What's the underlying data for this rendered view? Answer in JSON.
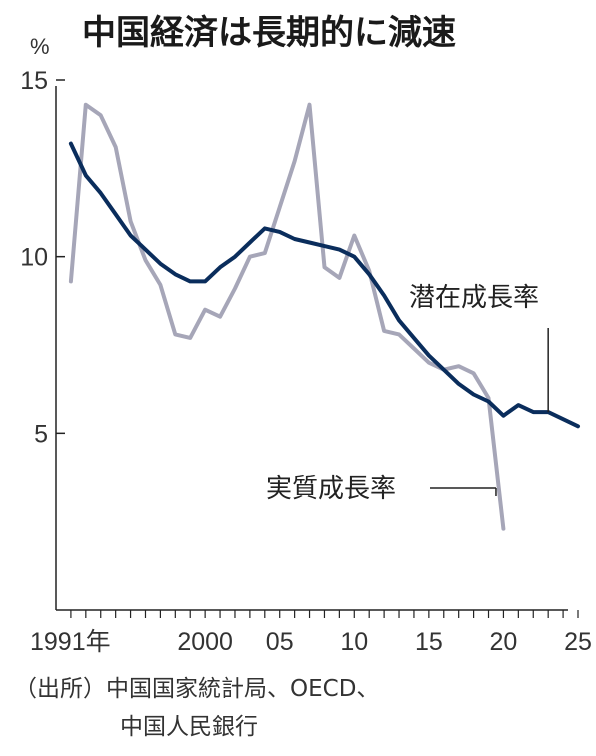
{
  "title": "中国経済は長期的に減速",
  "ylabel": "%",
  "source_line1": "（出所）中国国家統計局、OECD、",
  "source_line2": "中国人民銀行",
  "chart_data": {
    "type": "line",
    "title": "中国経済は長期的に減速",
    "ylabel": "%",
    "xlim": [
      1990,
      2025
    ],
    "ylim": [
      0,
      15
    ],
    "x_tick_values": [
      1991,
      2000,
      2005,
      2010,
      2015,
      2020,
      2025
    ],
    "x_tick_labels": [
      "1991年",
      "2000",
      "05",
      "10",
      "15",
      "20",
      "25"
    ],
    "y_tick_values": [
      5,
      10,
      15
    ],
    "y_tick_labels": [
      "5",
      "10",
      "15"
    ],
    "series": [
      {
        "name": "潜在成長率",
        "color": "#0a2d5c",
        "x": [
          1991,
          1992,
          1993,
          1994,
          1995,
          1996,
          1997,
          1998,
          1999,
          2000,
          2001,
          2002,
          2003,
          2004,
          2005,
          2006,
          2007,
          2008,
          2009,
          2010,
          2011,
          2012,
          2013,
          2014,
          2015,
          2016,
          2017,
          2018,
          2019,
          2020,
          2021,
          2022,
          2023,
          2024,
          2025
        ],
        "values": [
          13.2,
          12.3,
          11.8,
          11.2,
          10.6,
          10.2,
          9.8,
          9.5,
          9.3,
          9.3,
          9.7,
          10.0,
          10.4,
          10.8,
          10.7,
          10.5,
          10.4,
          10.3,
          10.2,
          10.0,
          9.5,
          8.9,
          8.2,
          7.7,
          7.2,
          6.8,
          6.4,
          6.1,
          5.9,
          5.5,
          5.8,
          5.6,
          5.6,
          5.4,
          5.2
        ]
      },
      {
        "name": "実質成長率",
        "color": "#a6a6b8",
        "x": [
          1991,
          1992,
          1993,
          1994,
          1995,
          1996,
          1997,
          1998,
          1999,
          2000,
          2001,
          2002,
          2003,
          2004,
          2005,
          2006,
          2007,
          2008,
          2009,
          2010,
          2011,
          2012,
          2013,
          2014,
          2015,
          2016,
          2017,
          2018,
          2019,
          2020
        ],
        "values": [
          9.3,
          14.3,
          14.0,
          13.1,
          11.0,
          9.9,
          9.2,
          7.8,
          7.7,
          8.5,
          8.3,
          9.1,
          10.0,
          10.1,
          11.4,
          12.7,
          14.3,
          9.7,
          9.4,
          10.6,
          9.6,
          7.9,
          7.8,
          7.4,
          7.0,
          6.8,
          6.9,
          6.7,
          6.0,
          2.3
        ]
      }
    ]
  }
}
